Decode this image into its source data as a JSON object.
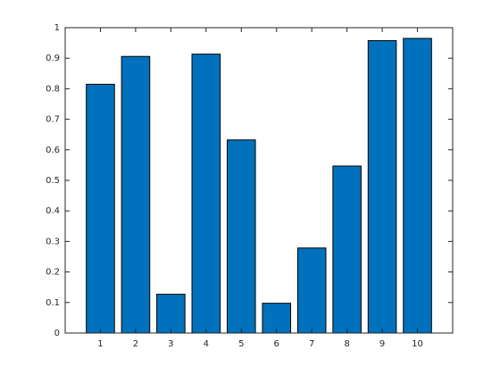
{
  "chart_data": {
    "type": "bar",
    "x": [
      1,
      2,
      3,
      4,
      5,
      6,
      7,
      8,
      9,
      10
    ],
    "values": [
      0.8147,
      0.9058,
      0.127,
      0.9134,
      0.6324,
      0.0975,
      0.2785,
      0.5469,
      0.9575,
      0.9649
    ],
    "color": "#0072bd",
    "xlim": [
      0,
      11
    ],
    "xticks": [
      1,
      2,
      3,
      4,
      5,
      6,
      7,
      8,
      9,
      10
    ],
    "ylim": [
      0,
      1
    ],
    "yticks": [
      0,
      0.1,
      0.2,
      0.3,
      0.4,
      0.5,
      0.6,
      0.7,
      0.8,
      0.9,
      1
    ],
    "grid": false
  }
}
